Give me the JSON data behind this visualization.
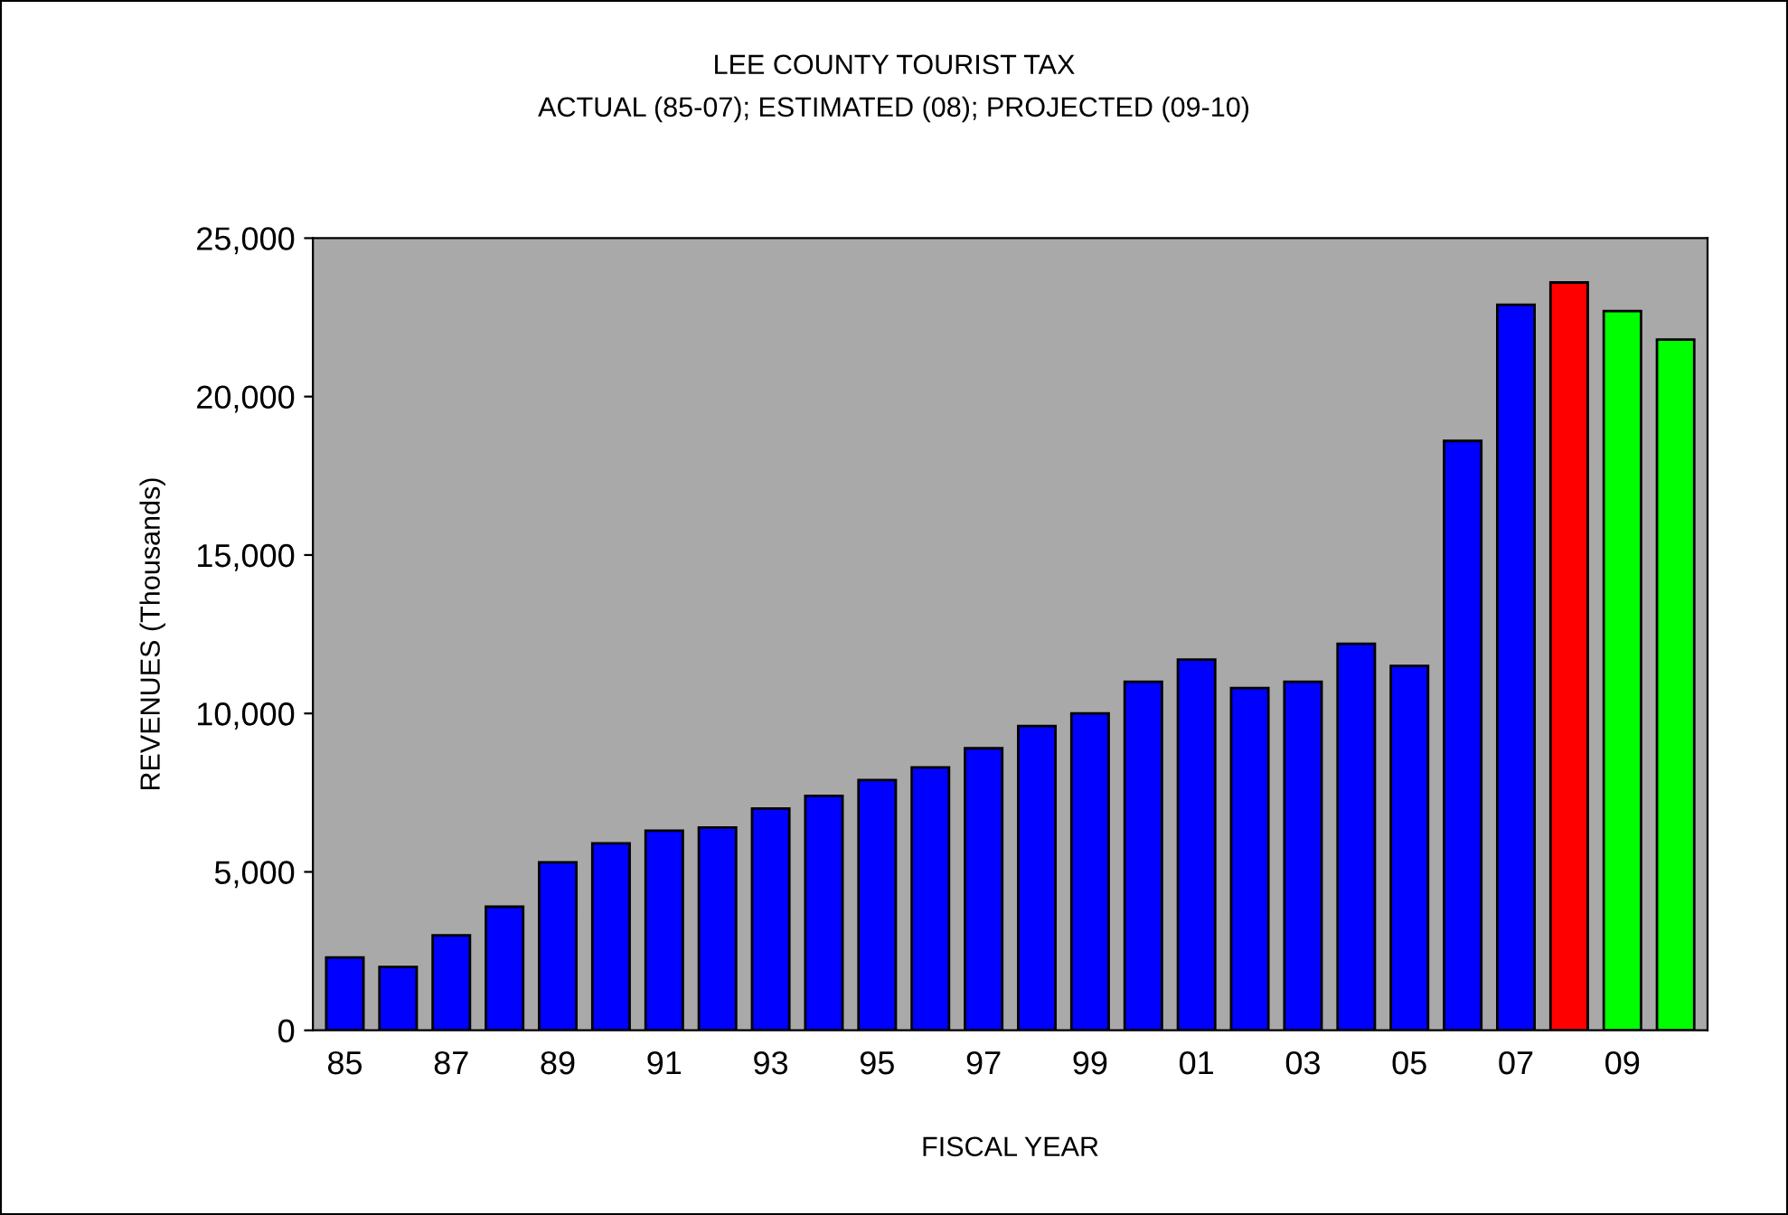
{
  "chart_data": {
    "type": "bar",
    "title": "LEE COUNTY TOURIST TAX",
    "subtitle": "ACTUAL (85-07); ESTIMATED (08); PROJECTED (09-10)",
    "xlabel": "FISCAL YEAR",
    "ylabel": "REVENUES (Thousands)",
    "categories": [
      "85",
      null,
      "87",
      null,
      "89",
      null,
      "91",
      null,
      "93",
      null,
      "95",
      null,
      "97",
      null,
      "99",
      null,
      "01",
      null,
      "03",
      null,
      "05",
      null,
      "07",
      null,
      "09",
      null
    ],
    "values": [
      2300,
      2000,
      3000,
      3900,
      5300,
      5900,
      6300,
      6400,
      7000,
      7400,
      7900,
      8300,
      8900,
      9600,
      10000,
      11000,
      11700,
      10800,
      11000,
      12200,
      11500,
      18600,
      22900,
      23600,
      22700,
      21800
    ],
    "colors": [
      "#0000ff",
      "#0000ff",
      "#0000ff",
      "#0000ff",
      "#0000ff",
      "#0000ff",
      "#0000ff",
      "#0000ff",
      "#0000ff",
      "#0000ff",
      "#0000ff",
      "#0000ff",
      "#0000ff",
      "#0000ff",
      "#0000ff",
      "#0000ff",
      "#0000ff",
      "#0000ff",
      "#0000ff",
      "#0000ff",
      "#0000ff",
      "#0000ff",
      "#0000ff",
      "#ff0000",
      "#00ff00",
      "#00ff00"
    ],
    "ylim": [
      0,
      25000
    ],
    "yticks": [
      0,
      {
        "value": 5000,
        "label": "5,000"
      },
      {
        "value": 10000,
        "label": "10,000"
      },
      {
        "value": 15000,
        "label": "15,000"
      },
      {
        "value": 20000,
        "label": "20,000"
      },
      {
        "value": 25000,
        "label": "25,000"
      }
    ],
    "grid": false,
    "legend": false
  }
}
